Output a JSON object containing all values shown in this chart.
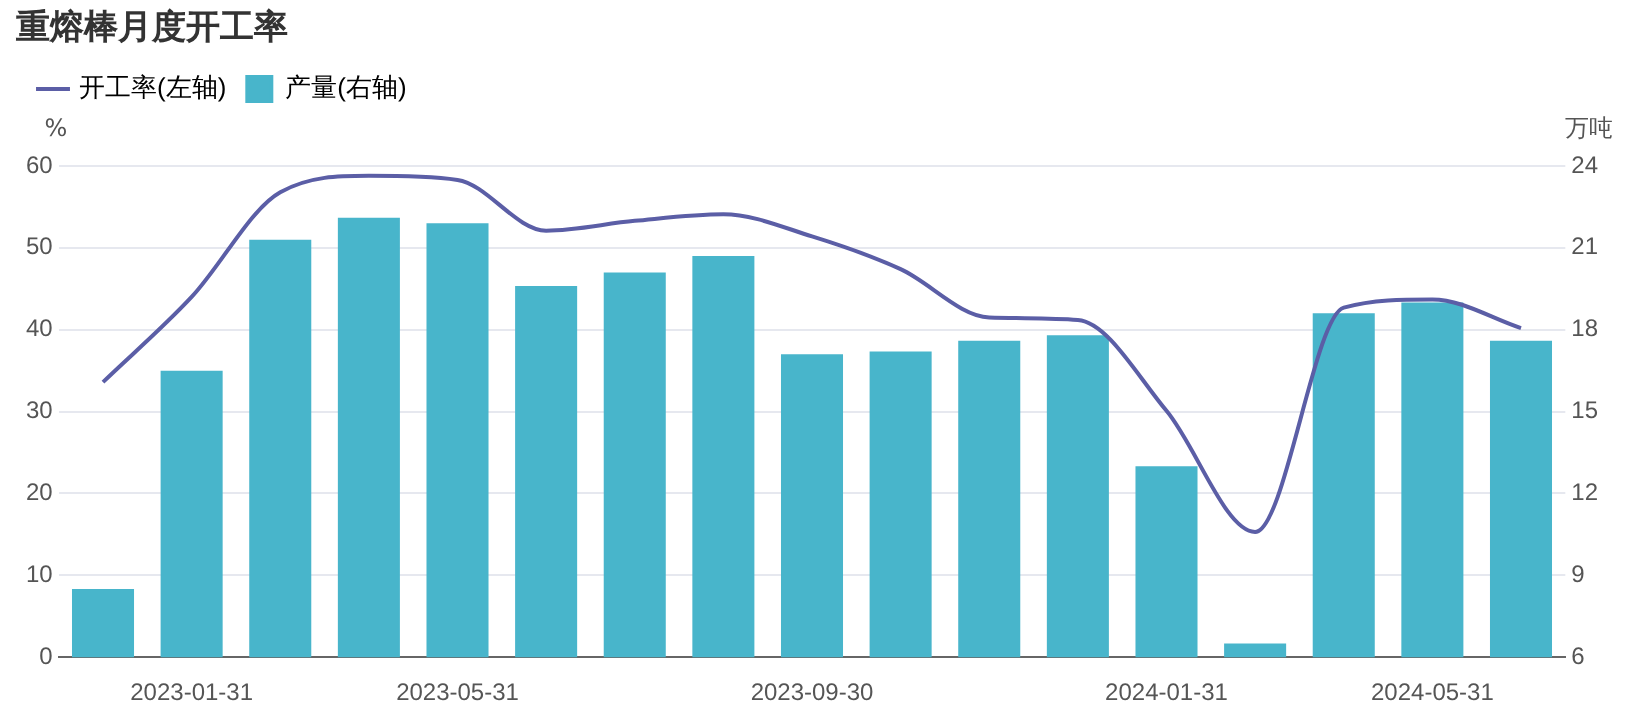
{
  "chart_data": {
    "type": "bar",
    "title": "重熔棒月度开工率",
    "ylabel": "%",
    "y2label": "万吨",
    "categories": [
      null,
      "2023-01-31",
      null,
      null,
      "2023-05-31",
      null,
      null,
      null,
      "2023-09-30",
      null,
      null,
      null,
      "2024-01-31",
      null,
      null,
      "2024-05-31",
      null
    ],
    "series": [
      {
        "name": "开工率(左轴)",
        "type": "line",
        "color": "#5b5ea6",
        "values": [
          33.6,
          44,
          56.8,
          58.8,
          58.3,
          52.1,
          53.3,
          54.1,
          51.4,
          47.4,
          41.5,
          41.2,
          30.1,
          15.3,
          42.7,
          43.7,
          40.2
        ]
      },
      {
        "name": "产量(右轴)",
        "axis": "y2",
        "color": "#48b5cb",
        "values": [
          8.5,
          16.5,
          21.3,
          22.1,
          21.9,
          19.6,
          20.1,
          20.7,
          17.1,
          17.2,
          17.6,
          17.8,
          13.0,
          6.5,
          18.6,
          19.0,
          17.6
        ]
      }
    ],
    "ylim": [
      0,
      60
    ],
    "yticks": [
      0,
      10,
      20,
      30,
      40,
      50,
      60
    ],
    "y2lim": [
      6,
      24
    ],
    "y2ticks": [
      6,
      9,
      12,
      15,
      18,
      21,
      24
    ],
    "grid": "y",
    "legend": "top left",
    "marker": "none"
  }
}
